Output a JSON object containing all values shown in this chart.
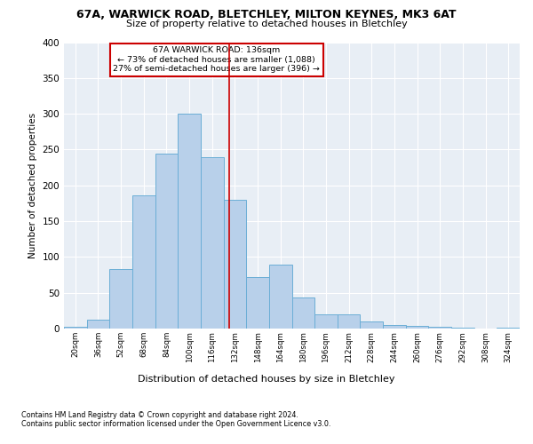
{
  "title1": "67A, WARWICK ROAD, BLETCHLEY, MILTON KEYNES, MK3 6AT",
  "title2": "Size of property relative to detached houses in Bletchley",
  "xlabel": "Distribution of detached houses by size in Bletchley",
  "ylabel": "Number of detached properties",
  "footnote1": "Contains HM Land Registry data © Crown copyright and database right 2024.",
  "footnote2": "Contains public sector information licensed under the Open Government Licence v3.0.",
  "bin_edges": [
    20,
    36,
    52,
    68,
    84,
    100,
    116,
    132,
    148,
    164,
    180,
    196,
    212,
    228,
    244,
    260,
    276,
    292,
    308,
    324,
    340
  ],
  "bar_heights": [
    3,
    12,
    83,
    186,
    244,
    300,
    239,
    180,
    72,
    89,
    44,
    20,
    20,
    10,
    5,
    4,
    2,
    1,
    0,
    1
  ],
  "bar_color": "#b8d0ea",
  "bar_edge_color": "#6baed6",
  "property_size": 136,
  "annotation_text1": "67A WARWICK ROAD: 136sqm",
  "annotation_text2": "← 73% of detached houses are smaller (1,088)",
  "annotation_text3": "27% of semi-detached houses are larger (396) →",
  "vline_color": "#cc0000",
  "annotation_box_color": "#ffffff",
  "annotation_box_edge": "#cc0000",
  "ylim": [
    0,
    400
  ],
  "yticks": [
    0,
    50,
    100,
    150,
    200,
    250,
    300,
    350,
    400
  ],
  "fig_background": "#ffffff",
  "plot_background": "#e8eef5"
}
